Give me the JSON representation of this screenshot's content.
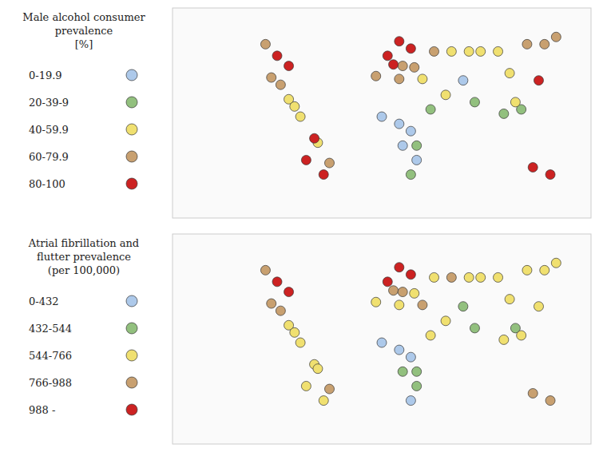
{
  "chart_data": [
    {
      "type": "scatter",
      "title": "Male alcohol consumer\nprevalence\n[%]",
      "xlim": [
        -180,
        180
      ],
      "ylim": [
        -60,
        85
      ],
      "tick_labels": false,
      "grid": false,
      "legend": "left",
      "series": [
        {
          "name": "0-19.9",
          "color": "#adc9ea",
          "x": [
            0,
            15,
            25,
            18,
            30,
            70
          ],
          "values": [
            10,
            5,
            0,
            -10,
            -20,
            35
          ]
        },
        {
          "name": "20-39-9",
          "color": "#92c07e",
          "x": [
            25,
            30,
            42,
            80,
            105,
            120
          ],
          "values": [
            -30,
            -10,
            15,
            20,
            12,
            15
          ]
        },
        {
          "name": "40-59.9",
          "color": "#f0e070",
          "x": [
            -80,
            -75,
            -70,
            -55,
            35,
            55,
            60,
            75,
            85,
            100,
            110,
            115
          ],
          "values": [
            22,
            17,
            10,
            -8,
            36,
            25,
            55,
            55,
            55,
            55,
            40,
            20
          ]
        },
        {
          "name": "60-79.9",
          "color": "#c8a070",
          "x": [
            -100,
            -95,
            -87,
            -45,
            18,
            28,
            -5,
            15,
            45,
            125,
            140,
            150
          ],
          "values": [
            60,
            37,
            32,
            -22,
            45,
            44,
            38,
            36,
            55,
            60,
            60,
            65
          ]
        },
        {
          "name": "80-100",
          "color": "#cc2222",
          "x": [
            -90,
            -80,
            -58,
            -65,
            -50,
            15,
            5,
            25,
            10,
            135,
            130,
            145
          ],
          "values": [
            52,
            45,
            -5,
            -20,
            -30,
            62,
            52,
            57,
            46,
            35,
            -25,
            -30
          ]
        }
      ]
    },
    {
      "type": "scatter",
      "title": "Atrial fibrillation and\nflutter prevalence\n(per 100,000)",
      "xlim": [
        -180,
        180
      ],
      "ylim": [
        -60,
        85
      ],
      "tick_labels": false,
      "grid": false,
      "legend": "left",
      "series": [
        {
          "name": "0-432",
          "color": "#adc9ea",
          "x": [
            0,
            15,
            25,
            25
          ],
          "values": [
            10,
            5,
            0,
            -30
          ]
        },
        {
          "name": "432-544",
          "color": "#92c07e",
          "x": [
            18,
            30,
            30,
            70,
            80,
            115
          ],
          "values": [
            -10,
            -20,
            -10,
            35,
            20,
            20
          ]
        },
        {
          "name": "544-766",
          "color": "#f0e070",
          "x": [
            -80,
            -75,
            -70,
            -58,
            -65,
            -50,
            -55,
            28,
            -5,
            15,
            42,
            55,
            45,
            75,
            85,
            100,
            110,
            105,
            120,
            135,
            125,
            140,
            150
          ],
          "values": [
            22,
            17,
            10,
            -5,
            -20,
            -30,
            -8,
            44,
            38,
            36,
            15,
            25,
            55,
            55,
            55,
            55,
            40,
            12,
            15,
            35,
            60,
            60,
            65
          ]
        },
        {
          "name": "766-988",
          "color": "#c8a070",
          "x": [
            -100,
            -95,
            -87,
            -45,
            10,
            18,
            35,
            60,
            130,
            145
          ],
          "values": [
            60,
            37,
            32,
            -22,
            46,
            45,
            36,
            55,
            -25,
            -30
          ]
        },
        {
          "name": "988 -",
          "color": "#cc2222",
          "x": [
            -90,
            -80,
            15,
            5,
            25
          ],
          "values": [
            52,
            45,
            62,
            52,
            57
          ]
        }
      ]
    }
  ]
}
